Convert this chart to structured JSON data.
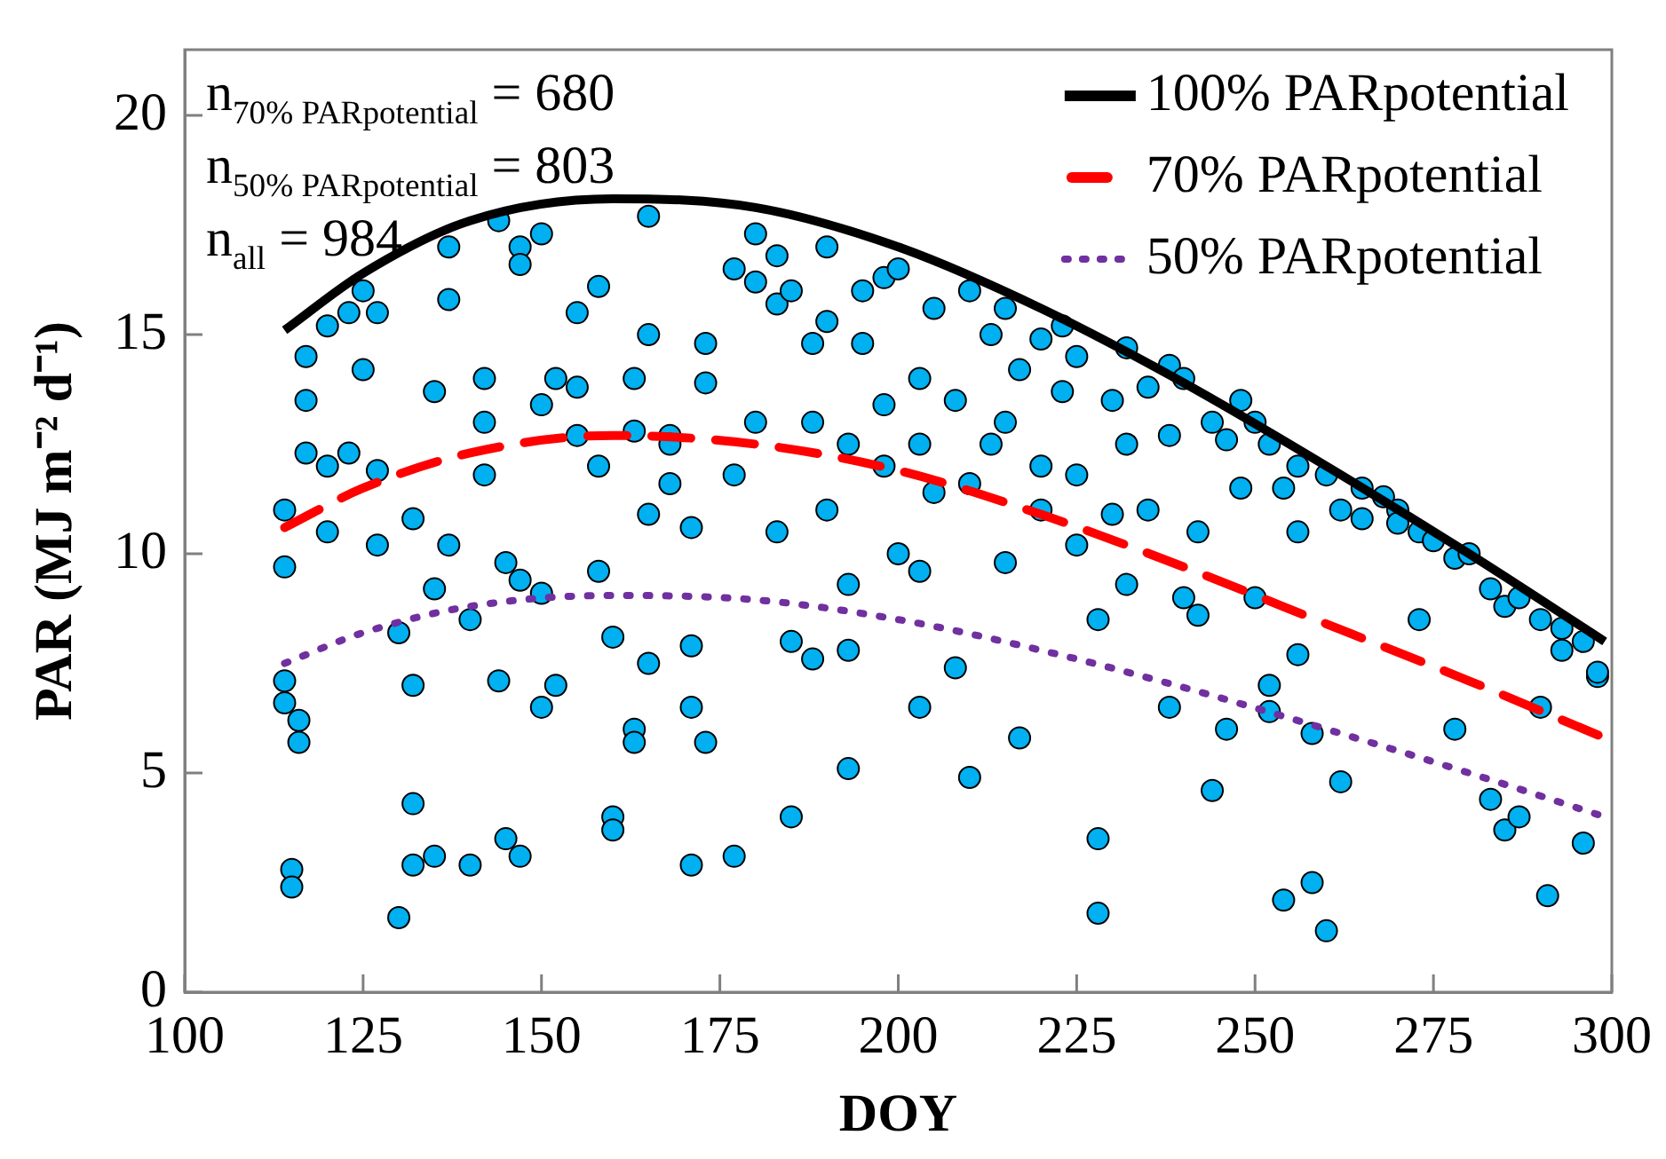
{
  "chart_data": {
    "type": "scatter",
    "xlabel": "DOY",
    "ylabel": "PAR (MJ m⁻² d⁻¹)",
    "xlim": [
      100,
      300
    ],
    "xticks": [
      100,
      125,
      150,
      175,
      200,
      225,
      250,
      275,
      300
    ],
    "ylim": [
      0,
      21.5
    ],
    "yticks": [
      0,
      5,
      10,
      15,
      20
    ],
    "grid": false,
    "legend": "top right",
    "marker": "circle",
    "annotations": [
      "n$_{70% PARpotential}$ = 680",
      "n$_{50% PARpotential}$ = 803",
      "n$_{all}$ = 984"
    ],
    "series": [
      {
        "type": "scatter",
        "color": "#00b0f0",
        "x": [
          114,
          114,
          114,
          114,
          115,
          115,
          116,
          116,
          117,
          117,
          117,
          120,
          120,
          120,
          123,
          123,
          125,
          125,
          127,
          127,
          127,
          130,
          130,
          132,
          132,
          132,
          132,
          135,
          135,
          135,
          137,
          137,
          137,
          140,
          140,
          142,
          142,
          142,
          144,
          144,
          145,
          145,
          147,
          147,
          147,
          147,
          150,
          150,
          150,
          150,
          152,
          152,
          155,
          155,
          155,
          158,
          158,
          158,
          160,
          160,
          160,
          163,
          163,
          163,
          163,
          165,
          165,
          165,
          165,
          168,
          168,
          168,
          171,
          171,
          171,
          171,
          173,
          173,
          173,
          177,
          177,
          177,
          180,
          180,
          180,
          183,
          183,
          183,
          185,
          185,
          185,
          188,
          188,
          188,
          190,
          190,
          190,
          193,
          193,
          193,
          193,
          195,
          195,
          198,
          198,
          198,
          200,
          200,
          203,
          203,
          203,
          203,
          205,
          205,
          208,
          208,
          210,
          210,
          210,
          213,
          213,
          215,
          215,
          215,
          217,
          217,
          220,
          220,
          220,
          223,
          223,
          225,
          225,
          225,
          228,
          228,
          228,
          230,
          230,
          232,
          232,
          232,
          235,
          235,
          238,
          238,
          238,
          240,
          240,
          242,
          242,
          244,
          244,
          246,
          246,
          248,
          248,
          250,
          250,
          252,
          252,
          252,
          254,
          254,
          256,
          256,
          256,
          258,
          258,
          260,
          260,
          262,
          262,
          265,
          265,
          268,
          270,
          270,
          273,
          273,
          275,
          278,
          278,
          280,
          283,
          283,
          285,
          285,
          287,
          287,
          290,
          290,
          291,
          293,
          293,
          296,
          296,
          298,
          298
        ],
        "values": [
          11.0,
          9.7,
          7.1,
          6.6,
          2.8,
          2.4,
          5.7,
          6.2,
          12.3,
          14.5,
          13.5,
          15.2,
          12.0,
          10.5,
          15.5,
          12.3,
          16.0,
          14.2,
          15.5,
          10.2,
          11.9,
          1.7,
          8.2,
          7.0,
          2.9,
          4.3,
          10.8,
          13.7,
          9.2,
          3.1,
          17.0,
          15.8,
          10.2,
          8.5,
          2.9,
          14.0,
          11.8,
          13.0,
          17.6,
          7.1,
          3.5,
          9.8,
          17.0,
          16.6,
          3.1,
          9.4,
          17.3,
          13.4,
          6.5,
          9.1,
          7.0,
          14.0,
          15.5,
          12.7,
          13.8,
          16.1,
          9.6,
          12.0,
          4.0,
          3.7,
          8.1,
          14.0,
          12.8,
          6.0,
          5.7,
          17.7,
          15.0,
          10.9,
          7.5,
          12.7,
          11.6,
          12.5,
          7.9,
          6.5,
          2.9,
          10.6,
          14.8,
          13.9,
          5.7,
          16.5,
          11.8,
          3.1,
          17.3,
          16.2,
          13.0,
          16.8,
          15.7,
          10.5,
          16.0,
          4.0,
          8.0,
          14.8,
          7.6,
          13.0,
          17.0,
          15.3,
          11.0,
          12.5,
          5.1,
          9.3,
          7.8,
          16.0,
          14.8,
          16.3,
          12.0,
          13.4,
          16.5,
          10.0,
          14.0,
          12.5,
          9.6,
          6.5,
          15.6,
          11.4,
          13.5,
          7.4,
          16.0,
          4.9,
          11.6,
          15.0,
          12.5,
          15.6,
          13.0,
          9.8,
          5.8,
          14.2,
          14.9,
          12.0,
          11.0,
          15.2,
          13.7,
          14.5,
          11.8,
          10.2,
          3.5,
          1.8,
          8.5,
          13.5,
          10.9,
          14.7,
          12.5,
          9.3,
          13.8,
          11.0,
          14.3,
          12.7,
          6.5,
          14.0,
          9.0,
          10.5,
          8.6,
          4.6,
          13.0,
          12.6,
          6.0,
          13.5,
          11.5,
          13.0,
          9.0,
          12.5,
          7.0,
          6.4,
          2.1,
          11.5,
          12.0,
          7.7,
          10.5,
          5.9,
          2.5,
          1.4,
          11.8,
          11.0,
          4.8,
          11.5,
          10.8,
          11.3,
          11.0,
          10.7,
          8.5,
          10.5,
          10.3,
          9.9,
          6.0,
          10.0,
          9.2,
          4.4,
          8.8,
          3.7,
          9.0,
          4.0,
          8.5,
          6.5,
          2.2,
          8.3,
          7.8,
          3.4,
          8.0,
          7.2,
          7.3
        ]
      },
      {
        "type": "line",
        "name": "100% PARpotential",
        "color": "#000000",
        "line_style": "solid",
        "marker": "none",
        "x": [
          114,
          125,
          140,
          160,
          180,
          200,
          220,
          240,
          260,
          280,
          299
        ],
        "values": [
          15.1,
          16.4,
          17.6,
          18.1,
          17.9,
          17.0,
          15.6,
          13.9,
          12.0,
          10.0,
          8.0
        ]
      },
      {
        "type": "line",
        "name": "70% PARpotential",
        "color": "#ff0000",
        "line_style": "dashed",
        "marker": "none",
        "x": [
          114,
          125,
          140,
          160,
          180,
          200,
          220,
          240,
          260,
          280,
          299
        ],
        "values": [
          10.6,
          11.5,
          12.3,
          12.7,
          12.5,
          11.9,
          10.9,
          9.7,
          8.4,
          7.1,
          5.8
        ]
      },
      {
        "type": "line",
        "name": "50% PARpotential",
        "color": "#7030a0",
        "line_style": "dotted",
        "marker": "none",
        "x": [
          114,
          125,
          140,
          160,
          180,
          200,
          220,
          240,
          260,
          280,
          299
        ],
        "values": [
          7.5,
          8.2,
          8.8,
          9.05,
          8.95,
          8.5,
          7.8,
          6.95,
          6.0,
          5.0,
          4.0
        ]
      }
    ]
  }
}
